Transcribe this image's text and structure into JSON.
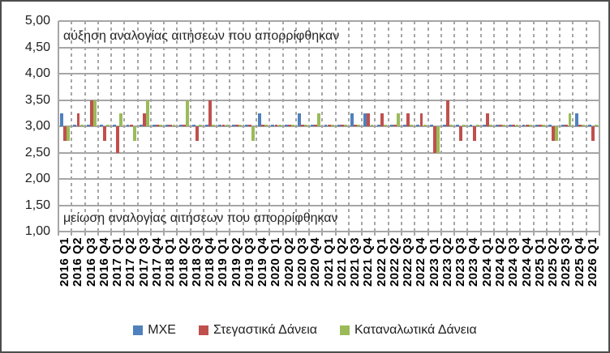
{
  "chart_data": {
    "type": "bar",
    "title": "",
    "categories": [
      "2016 Q1",
      "2016 Q2",
      "2016 Q3",
      "2016 Q4",
      "2017 Q1",
      "2017 Q2",
      "2017 Q3",
      "2017 Q4",
      "2018 Q1",
      "2018 Q2",
      "2018 Q3",
      "2018 Q4",
      "2019 Q1",
      "2019 Q2",
      "2019 Q3",
      "2019 Q4",
      "2020 Q1",
      "2020 Q2",
      "2020 Q3",
      "2020 Q4",
      "2021 Q1",
      "2021 Q2",
      "2021 Q3",
      "2021 Q4",
      "2022 Q1",
      "2022 Q2",
      "2022 Q3",
      "2022 Q4",
      "2023 Q1",
      "2023 Q2",
      "2023 Q3",
      "2023 Q4",
      "2024 Q1",
      "2024 Q2",
      "2024 Q3",
      "2024 Q4",
      "2025 Q1",
      "2025 Q2",
      "2025 Q3",
      "2025 Q4",
      "2026 Q1"
    ],
    "series": [
      {
        "name": "ΜΧΕ",
        "color": "#4F81BD",
        "values": [
          3.25,
          3.03,
          3.03,
          3.03,
          3.03,
          3.03,
          3.03,
          3.03,
          3.03,
          3.03,
          3.03,
          3.03,
          3.03,
          3.03,
          3.03,
          3.25,
          3.03,
          3.03,
          3.25,
          3.03,
          3.03,
          3.03,
          3.25,
          3.25,
          3.03,
          3.03,
          3.03,
          3.03,
          3.03,
          3.03,
          3.03,
          3.03,
          3.03,
          3.03,
          3.03,
          3.03,
          3.03,
          3.03,
          3.03,
          3.25,
          3.03
        ]
      },
      {
        "name": "Στεγαστικά Δάνεια",
        "color": "#C0504D",
        "values": [
          2.72,
          3.25,
          3.5,
          2.72,
          2.5,
          3.03,
          3.25,
          3.03,
          3.03,
          3.03,
          2.72,
          3.5,
          3.03,
          3.03,
          3.03,
          3.03,
          3.03,
          3.03,
          3.03,
          3.03,
          3.03,
          3.03,
          3.03,
          3.25,
          3.25,
          3.03,
          3.25,
          3.25,
          2.5,
          3.5,
          2.72,
          2.72,
          3.25,
          3.03,
          3.03,
          3.03,
          3.03,
          2.72,
          3.03,
          3.03,
          2.72
        ]
      },
      {
        "name": "Καταναλωτικά Δάνεια",
        "color": "#9BBB59",
        "values": [
          2.72,
          3.03,
          3.5,
          3.03,
          3.25,
          2.72,
          3.5,
          3.03,
          3.03,
          3.5,
          3.03,
          3.03,
          3.03,
          3.03,
          2.72,
          3.03,
          3.03,
          3.03,
          3.03,
          3.25,
          3.03,
          3.03,
          3.03,
          3.03,
          3.03,
          3.25,
          3.03,
          3.03,
          2.5,
          3.03,
          3.03,
          3.03,
          3.03,
          3.03,
          3.03,
          3.03,
          3.03,
          2.72,
          3.25,
          3.03,
          3.03
        ]
      }
    ],
    "baseline": 3.0,
    "ylim": [
      1.0,
      5.0
    ],
    "ytick_step": 0.5,
    "ytick_labels": [
      "5,00",
      "4,50",
      "4,00",
      "3,50",
      "3,00",
      "2,50",
      "2,00",
      "1,50",
      "1,00"
    ],
    "annotations": {
      "top": "αύξηση αναλογίας αιτήσεων που απορρίφθηκαν",
      "bottom": "μείωση αναλογίας αιτήσεων που απορρίφθηκαν"
    },
    "legend_position": "bottom",
    "grid": {
      "horizontal": "solid",
      "vertical": "dashed",
      "color": "#A6A6A6"
    }
  }
}
